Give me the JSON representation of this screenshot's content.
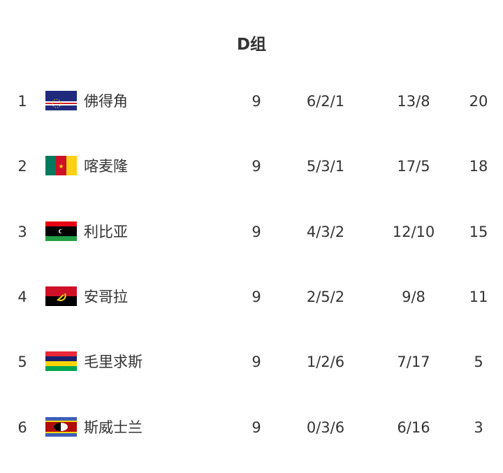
{
  "title": "D组",
  "rows": [
    {
      "rank": "1",
      "team": "佛得角",
      "flag": "cape-verde-flag",
      "played": "9",
      "record": "6/2/1",
      "goals": "13/8",
      "points": "20"
    },
    {
      "rank": "2",
      "team": "喀麦隆",
      "flag": "cameroon-flag",
      "played": "9",
      "record": "5/3/1",
      "goals": "17/5",
      "points": "18"
    },
    {
      "rank": "3",
      "team": "利比亚",
      "flag": "libya-flag",
      "played": "9",
      "record": "4/3/2",
      "goals": "12/10",
      "points": "15"
    },
    {
      "rank": "4",
      "team": "安哥拉",
      "flag": "angola-flag",
      "played": "9",
      "record": "2/5/2",
      "goals": "9/8",
      "points": "11"
    },
    {
      "rank": "5",
      "team": "毛里求斯",
      "flag": "mauritius-flag",
      "played": "9",
      "record": "1/2/6",
      "goals": "7/17",
      "points": "5"
    },
    {
      "rank": "6",
      "team": "斯威士兰",
      "flag": "eswatini-flag",
      "played": "9",
      "record": "0/3/6",
      "goals": "6/16",
      "points": "3"
    }
  ]
}
